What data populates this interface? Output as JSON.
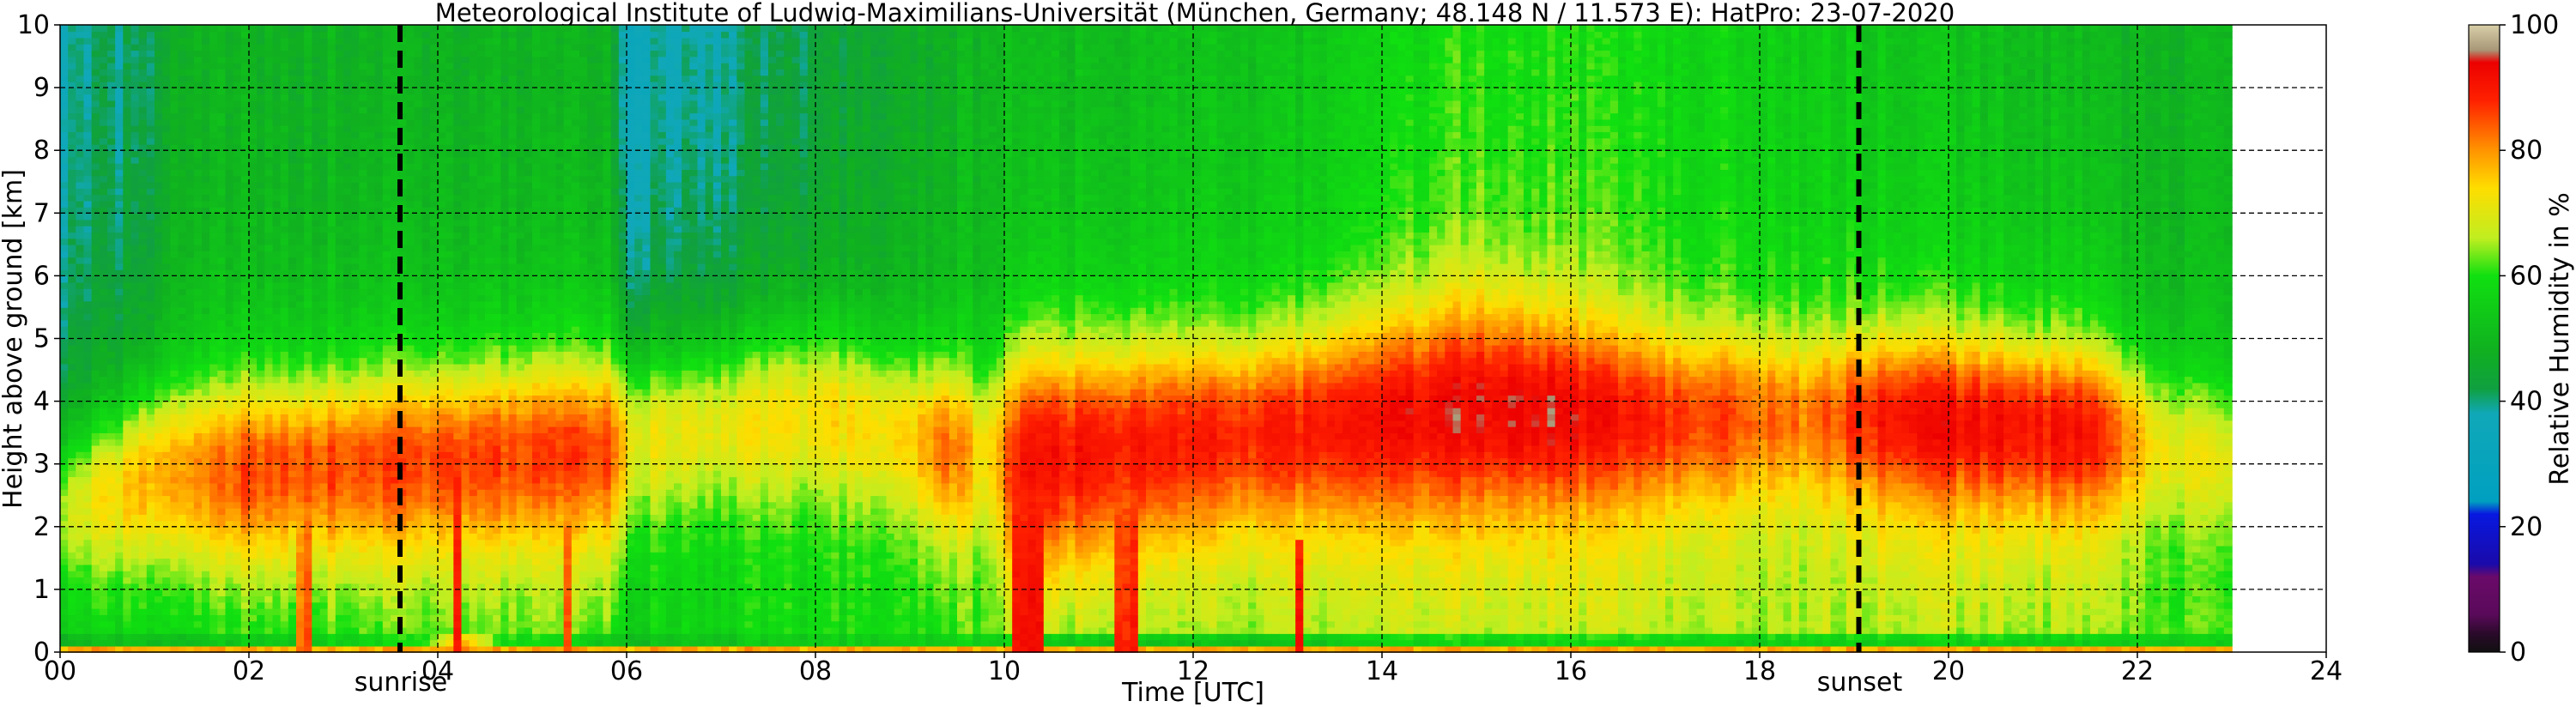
{
  "chart_data": {
    "type": "heatmap",
    "title": "Meteorological Institute of Ludwig-Maximilians-Universität (München, Germany; 48.148 N / 11.573 E):    HatPro: 23-07-2020",
    "xlabel": "Time [UTC]",
    "ylabel": "Height above ground [km]",
    "xlim": [
      0,
      24
    ],
    "ylim": [
      0,
      10
    ],
    "data_x_end": 23,
    "x_ticks": [
      "00",
      "02",
      "04",
      "06",
      "08",
      "10",
      "12",
      "14",
      "16",
      "18",
      "20",
      "22",
      "24"
    ],
    "x_tick_values": [
      0,
      2,
      4,
      6,
      8,
      10,
      12,
      14,
      16,
      18,
      20,
      22,
      24
    ],
    "y_ticks": [
      "0",
      "1",
      "2",
      "3",
      "4",
      "5",
      "6",
      "7",
      "8",
      "9",
      "10"
    ],
    "y_tick_values": [
      0,
      1,
      2,
      3,
      4,
      5,
      6,
      7,
      8,
      9,
      10
    ],
    "grid": true,
    "events": [
      {
        "label": "sunrise",
        "x": 3.6
      },
      {
        "label": "sunset",
        "x": 19.05
      }
    ],
    "colorbar": {
      "label": "Relative Humidity in %",
      "range": [
        0,
        100
      ],
      "ticks": [
        "0",
        "20",
        "40",
        "60",
        "80",
        "100"
      ],
      "tick_values": [
        0,
        20,
        40,
        60,
        80,
        100
      ]
    },
    "colors": {
      "cmap": [
        {
          "v": 0,
          "c": "#101010"
        },
        {
          "v": 3,
          "c": "#2b0a2b"
        },
        {
          "v": 6,
          "c": "#5a0a5a"
        },
        {
          "v": 12,
          "c": "#6a0a6a"
        },
        {
          "v": 14,
          "c": "#1a0aaa"
        },
        {
          "v": 22,
          "c": "#0818e0"
        },
        {
          "v": 24,
          "c": "#00a0c0"
        },
        {
          "v": 38,
          "c": "#10a8b8"
        },
        {
          "v": 42,
          "c": "#10a040"
        },
        {
          "v": 48,
          "c": "#10b020"
        },
        {
          "v": 60,
          "c": "#10e010"
        },
        {
          "v": 66,
          "c": "#c0ee20"
        },
        {
          "v": 74,
          "c": "#ffdd00"
        },
        {
          "v": 80,
          "c": "#ff9400"
        },
        {
          "v": 88,
          "c": "#ff2000"
        },
        {
          "v": 94,
          "c": "#ec0000"
        },
        {
          "v": 96,
          "c": "#a89878"
        },
        {
          "v": 100,
          "c": "#d8cfa8"
        }
      ]
    },
    "humidity_features": {
      "column_core_center_km": [
        [
          0,
          2.2
        ],
        [
          1,
          2.8
        ],
        [
          3.6,
          3.0
        ],
        [
          5.8,
          3.2
        ],
        [
          6.3,
          3.4
        ],
        [
          8,
          3.8
        ],
        [
          9.2,
          3.3
        ],
        [
          10,
          3.0
        ],
        [
          11.5,
          3.3
        ],
        [
          13,
          3.5
        ],
        [
          15,
          3.9
        ],
        [
          17,
          3.7
        ],
        [
          19.5,
          3.7
        ],
        [
          21.5,
          3.5
        ],
        [
          22.3,
          3.2
        ],
        [
          23,
          3.0
        ]
      ],
      "column_core_halfwidth_km": [
        [
          0,
          1.4
        ],
        [
          1,
          1.6
        ],
        [
          5.8,
          1.7
        ],
        [
          6.3,
          1.6
        ],
        [
          9.6,
          1.6
        ],
        [
          10.2,
          2.1
        ],
        [
          12.5,
          1.7
        ],
        [
          15,
          2.0
        ],
        [
          17,
          1.6
        ],
        [
          21.5,
          1.5
        ],
        [
          23,
          1.5
        ]
      ],
      "column_core_peak_pct": [
        [
          0,
          66
        ],
        [
          1,
          78
        ],
        [
          2,
          85
        ],
        [
          5.8,
          86
        ],
        [
          6.1,
          70
        ],
        [
          9,
          74
        ],
        [
          9.4,
          84
        ],
        [
          9.8,
          72
        ],
        [
          10.2,
          91
        ],
        [
          11.3,
          90
        ],
        [
          12.5,
          88
        ],
        [
          14,
          91
        ],
        [
          15.5,
          94
        ],
        [
          17,
          88
        ],
        [
          18.5,
          82
        ],
        [
          19.5,
          92
        ],
        [
          21.5,
          90
        ],
        [
          22.2,
          72
        ],
        [
          23,
          70
        ]
      ],
      "column_upper_pct": [
        [
          0,
          38
        ],
        [
          0.9,
          40
        ],
        [
          1.2,
          48
        ],
        [
          5.8,
          48
        ],
        [
          6,
          36
        ],
        [
          7.5,
          40
        ],
        [
          8.5,
          44
        ],
        [
          10,
          50
        ],
        [
          13,
          52
        ],
        [
          15,
          60
        ],
        [
          18,
          56
        ],
        [
          22,
          48
        ],
        [
          23,
          50
        ]
      ],
      "column_lower_pct": [
        [
          0,
          55
        ],
        [
          3,
          60
        ],
        [
          5.8,
          62
        ],
        [
          6,
          56
        ],
        [
          9.5,
          60
        ],
        [
          10,
          64
        ],
        [
          13,
          64
        ],
        [
          15,
          66
        ],
        [
          19,
          66
        ],
        [
          23,
          62
        ]
      ],
      "column_surface_pct": [
        [
          0,
          46
        ],
        [
          3.8,
          58
        ],
        [
          4.3,
          86
        ],
        [
          4.6,
          60
        ],
        [
          6,
          50
        ],
        [
          9.5,
          55
        ],
        [
          10.5,
          50
        ],
        [
          13,
          48
        ],
        [
          14,
          54
        ],
        [
          23,
          52
        ]
      ],
      "spikes": [
        {
          "x": 4.22,
          "width": 0.1,
          "top_km": 3.4,
          "pct": 92
        },
        {
          "x": 10.25,
          "width": 0.3,
          "top_km": 2.6,
          "pct": 92
        },
        {
          "x": 11.3,
          "width": 0.25,
          "top_km": 2.5,
          "pct": 90
        },
        {
          "x": 13.15,
          "width": 0.08,
          "top_km": 1.8,
          "pct": 94
        },
        {
          "x": 2.6,
          "width": 0.12,
          "top_km": 2.4,
          "pct": 84
        },
        {
          "x": 5.35,
          "width": 0.1,
          "top_km": 2.1,
          "pct": 84
        }
      ]
    }
  }
}
